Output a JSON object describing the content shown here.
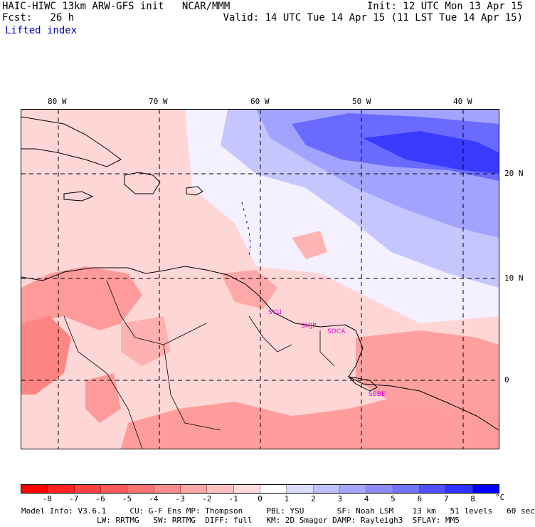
{
  "header": {
    "model": "HAIC-HIWC 13km ARW-GFS init   NCAR/MMM",
    "fcst_label": "Fcst:   26 h",
    "field": "Lifted index",
    "init": "Init: 12 UTC Mon 13 Apr 15",
    "valid": "Valid: 14 UTC Tue 14 Apr 15 (11 LST Tue 14 Apr 15)"
  },
  "map": {
    "lon_labels": [
      "80 W",
      "70 W",
      "60 W",
      "50 W",
      "40 W"
    ],
    "lat_labels": [
      "20 N",
      "10 N",
      "0"
    ],
    "stations": [
      "SYLI",
      "SMJP",
      "SOCA",
      "SBBE"
    ]
  },
  "colorbar": {
    "unit": "°C",
    "ticks": [
      "-8",
      "-7",
      "-6",
      "-5",
      "-4",
      "-3",
      "-2",
      "-1",
      "0",
      "1",
      "2",
      "3",
      "4",
      "5",
      "6",
      "7",
      "8"
    ],
    "colors": [
      "#ff0000",
      "#ff2020",
      "#ff4040",
      "#ff5a5a",
      "#ff7373",
      "#ff8c8c",
      "#ffa6a6",
      "#ffc0c0",
      "#ffdcdc",
      "#ffffff",
      "#dcdcff",
      "#c0c0ff",
      "#a6a6ff",
      "#8c8cff",
      "#7373ff",
      "#5050ff",
      "#3030ff",
      "#0000ff"
    ]
  },
  "footer": {
    "line1": "Model Info: V3.6.1     CU: G-F Ens MP: Thompson     PBL: YSU       SF: Noah LSM    13 km   51 levels   60 sec",
    "line2": "                LW: RRTMG   SW: RRTMG  DIFF: full   KM: 2D Smagor DAMP: Rayleigh3  SFLAY: MM5"
  }
}
